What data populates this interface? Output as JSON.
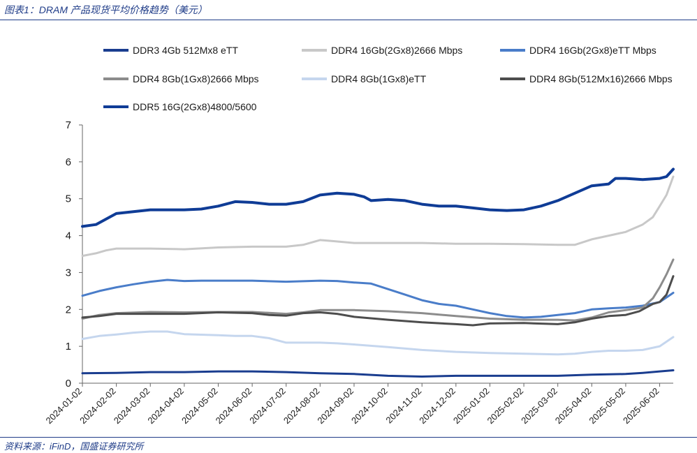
{
  "header": {
    "title": "图表1：DRAM 产品现货平均价格趋势（美元）"
  },
  "footer": {
    "source": "资料来源：iFinD，国盛证券研究所"
  },
  "chart_data": {
    "type": "line",
    "title": "DRAM 产品现货平均价格趋势（美元）",
    "xlabel": "",
    "ylabel": "",
    "ylim": [
      0,
      7
    ],
    "yticks": [
      0,
      1,
      2,
      3,
      4,
      5,
      6,
      7
    ],
    "x_tick_labels": [
      "2024-01-02",
      "2024-02-02",
      "2024-03-02",
      "2024-04-02",
      "2024-05-02",
      "2024-06-02",
      "2024-07-02",
      "2024-08-02",
      "2024-09-02",
      "2024-10-02",
      "2024-11-02",
      "2024-12-02",
      "2025-01-02",
      "2025-02-02",
      "2025-03-02",
      "2025-04-02",
      "2025-05-02",
      "2025-06-02"
    ],
    "x_months_range": [
      0,
      17.4
    ],
    "grid": false,
    "legend_position": "top",
    "series": [
      {
        "name": "DDR3 4Gb 512Mx8 eTT",
        "color": "#1a3d8f",
        "width": 3,
        "points": [
          [
            0,
            0.27
          ],
          [
            1,
            0.28
          ],
          [
            2,
            0.3
          ],
          [
            3,
            0.3
          ],
          [
            4,
            0.32
          ],
          [
            5,
            0.32
          ],
          [
            6,
            0.3
          ],
          [
            7,
            0.27
          ],
          [
            8,
            0.25
          ],
          [
            9,
            0.2
          ],
          [
            10,
            0.18
          ],
          [
            11,
            0.2
          ],
          [
            12,
            0.2
          ],
          [
            13,
            0.2
          ],
          [
            14,
            0.2
          ],
          [
            15,
            0.23
          ],
          [
            16,
            0.25
          ],
          [
            16.5,
            0.28
          ],
          [
            17,
            0.32
          ],
          [
            17.4,
            0.35
          ]
        ]
      },
      {
        "name": "DDR4 16Gb(2Gx8)2666 Mbps",
        "color": "#c8c8c8",
        "width": 3,
        "points": [
          [
            0,
            3.45
          ],
          [
            0.4,
            3.52
          ],
          [
            0.7,
            3.6
          ],
          [
            1,
            3.65
          ],
          [
            2,
            3.65
          ],
          [
            3,
            3.63
          ],
          [
            4,
            3.68
          ],
          [
            5,
            3.7
          ],
          [
            6,
            3.7
          ],
          [
            6.5,
            3.75
          ],
          [
            7,
            3.88
          ],
          [
            7.4,
            3.85
          ],
          [
            8,
            3.8
          ],
          [
            9,
            3.8
          ],
          [
            10,
            3.8
          ],
          [
            11,
            3.78
          ],
          [
            12,
            3.78
          ],
          [
            13,
            3.77
          ],
          [
            14,
            3.75
          ],
          [
            14.5,
            3.75
          ],
          [
            15,
            3.9
          ],
          [
            15.5,
            4.0
          ],
          [
            16,
            4.1
          ],
          [
            16.5,
            4.3
          ],
          [
            16.8,
            4.5
          ],
          [
            17,
            4.8
          ],
          [
            17.2,
            5.1
          ],
          [
            17.4,
            5.6
          ]
        ]
      },
      {
        "name": "DDR4 16Gb(2Gx8)eTT Mbps",
        "color": "#4a7dc9",
        "width": 3,
        "points": [
          [
            0,
            2.37
          ],
          [
            0.5,
            2.5
          ],
          [
            1,
            2.6
          ],
          [
            1.5,
            2.68
          ],
          [
            2,
            2.75
          ],
          [
            2.5,
            2.8
          ],
          [
            3,
            2.77
          ],
          [
            3.5,
            2.78
          ],
          [
            4,
            2.78
          ],
          [
            5,
            2.78
          ],
          [
            6,
            2.75
          ],
          [
            7,
            2.78
          ],
          [
            7.5,
            2.77
          ],
          [
            8,
            2.73
          ],
          [
            8.5,
            2.7
          ],
          [
            9,
            2.55
          ],
          [
            9.5,
            2.4
          ],
          [
            10,
            2.25
          ],
          [
            10.5,
            2.15
          ],
          [
            11,
            2.1
          ],
          [
            11.5,
            2.0
          ],
          [
            12,
            1.9
          ],
          [
            12.5,
            1.82
          ],
          [
            13,
            1.78
          ],
          [
            13.5,
            1.8
          ],
          [
            14,
            1.85
          ],
          [
            14.5,
            1.9
          ],
          [
            15,
            2.0
          ],
          [
            15.5,
            2.03
          ],
          [
            16,
            2.05
          ],
          [
            16.5,
            2.1
          ],
          [
            17,
            2.2
          ],
          [
            17.4,
            2.45
          ]
        ]
      },
      {
        "name": "DDR4 8Gb(1Gx8)2666 Mbps",
        "color": "#8c8c8c",
        "width": 3,
        "points": [
          [
            0,
            1.75
          ],
          [
            0.5,
            1.85
          ],
          [
            1,
            1.9
          ],
          [
            2,
            1.93
          ],
          [
            3,
            1.92
          ],
          [
            4,
            1.93
          ],
          [
            5,
            1.93
          ],
          [
            6,
            1.88
          ],
          [
            6.5,
            1.92
          ],
          [
            7,
            1.98
          ],
          [
            8,
            1.98
          ],
          [
            9,
            1.95
          ],
          [
            10,
            1.9
          ],
          [
            11,
            1.82
          ],
          [
            12,
            1.75
          ],
          [
            13,
            1.72
          ],
          [
            14,
            1.72
          ],
          [
            14.5,
            1.7
          ],
          [
            15,
            1.78
          ],
          [
            15.5,
            1.92
          ],
          [
            16,
            1.98
          ],
          [
            16.5,
            2.05
          ],
          [
            16.8,
            2.3
          ],
          [
            17,
            2.6
          ],
          [
            17.2,
            2.95
          ],
          [
            17.4,
            3.35
          ]
        ]
      },
      {
        "name": "DDR4 8Gb(1Gx8)eTT",
        "color": "#c5d6ee",
        "width": 3,
        "points": [
          [
            0,
            1.2
          ],
          [
            0.5,
            1.28
          ],
          [
            1,
            1.32
          ],
          [
            1.5,
            1.37
          ],
          [
            2,
            1.4
          ],
          [
            2.5,
            1.4
          ],
          [
            3,
            1.33
          ],
          [
            4,
            1.3
          ],
          [
            4.5,
            1.28
          ],
          [
            5,
            1.28
          ],
          [
            5.5,
            1.22
          ],
          [
            6,
            1.1
          ],
          [
            6.5,
            1.1
          ],
          [
            7,
            1.1
          ],
          [
            7.5,
            1.08
          ],
          [
            8,
            1.05
          ],
          [
            9,
            0.98
          ],
          [
            10,
            0.9
          ],
          [
            11,
            0.85
          ],
          [
            12,
            0.82
          ],
          [
            13,
            0.8
          ],
          [
            14,
            0.78
          ],
          [
            14.5,
            0.8
          ],
          [
            15,
            0.85
          ],
          [
            15.5,
            0.88
          ],
          [
            16,
            0.88
          ],
          [
            16.5,
            0.9
          ],
          [
            17,
            1.0
          ],
          [
            17.4,
            1.25
          ]
        ]
      },
      {
        "name": "DDR4 8Gb(512Mx16)2666 Mbps",
        "color": "#4d4d4d",
        "width": 3,
        "points": [
          [
            0,
            1.78
          ],
          [
            0.5,
            1.82
          ],
          [
            1,
            1.88
          ],
          [
            2,
            1.88
          ],
          [
            3,
            1.88
          ],
          [
            4,
            1.92
          ],
          [
            5,
            1.9
          ],
          [
            5.5,
            1.85
          ],
          [
            6,
            1.83
          ],
          [
            6.5,
            1.9
          ],
          [
            7,
            1.92
          ],
          [
            7.5,
            1.88
          ],
          [
            8,
            1.8
          ],
          [
            9,
            1.72
          ],
          [
            10,
            1.65
          ],
          [
            11,
            1.6
          ],
          [
            11.5,
            1.57
          ],
          [
            12,
            1.62
          ],
          [
            13,
            1.63
          ],
          [
            14,
            1.6
          ],
          [
            14.5,
            1.65
          ],
          [
            15,
            1.75
          ],
          [
            15.5,
            1.82
          ],
          [
            16,
            1.85
          ],
          [
            16.4,
            1.95
          ],
          [
            16.8,
            2.15
          ],
          [
            17,
            2.2
          ],
          [
            17.2,
            2.4
          ],
          [
            17.4,
            2.9
          ]
        ]
      },
      {
        "name": "DDR5 16G(2Gx8)4800/5600",
        "color": "#0f3c96",
        "width": 4,
        "points": [
          [
            0,
            4.25
          ],
          [
            0.4,
            4.3
          ],
          [
            0.8,
            4.5
          ],
          [
            1,
            4.6
          ],
          [
            1.5,
            4.65
          ],
          [
            2,
            4.7
          ],
          [
            3,
            4.7
          ],
          [
            3.5,
            4.72
          ],
          [
            4,
            4.8
          ],
          [
            4.5,
            4.92
          ],
          [
            5,
            4.9
          ],
          [
            5.5,
            4.85
          ],
          [
            6,
            4.85
          ],
          [
            6.5,
            4.92
          ],
          [
            7,
            5.1
          ],
          [
            7.5,
            5.15
          ],
          [
            8,
            5.12
          ],
          [
            8.3,
            5.05
          ],
          [
            8.5,
            4.95
          ],
          [
            9,
            4.98
          ],
          [
            9.5,
            4.95
          ],
          [
            10,
            4.85
          ],
          [
            10.5,
            4.8
          ],
          [
            11,
            4.8
          ],
          [
            11.5,
            4.75
          ],
          [
            12,
            4.7
          ],
          [
            12.5,
            4.68
          ],
          [
            13,
            4.7
          ],
          [
            13.5,
            4.8
          ],
          [
            14,
            4.95
          ],
          [
            14.5,
            5.15
          ],
          [
            15,
            5.35
          ],
          [
            15.5,
            5.4
          ],
          [
            15.7,
            5.55
          ],
          [
            16,
            5.55
          ],
          [
            16.5,
            5.52
          ],
          [
            17,
            5.55
          ],
          [
            17.2,
            5.6
          ],
          [
            17.4,
            5.8
          ]
        ]
      }
    ]
  }
}
